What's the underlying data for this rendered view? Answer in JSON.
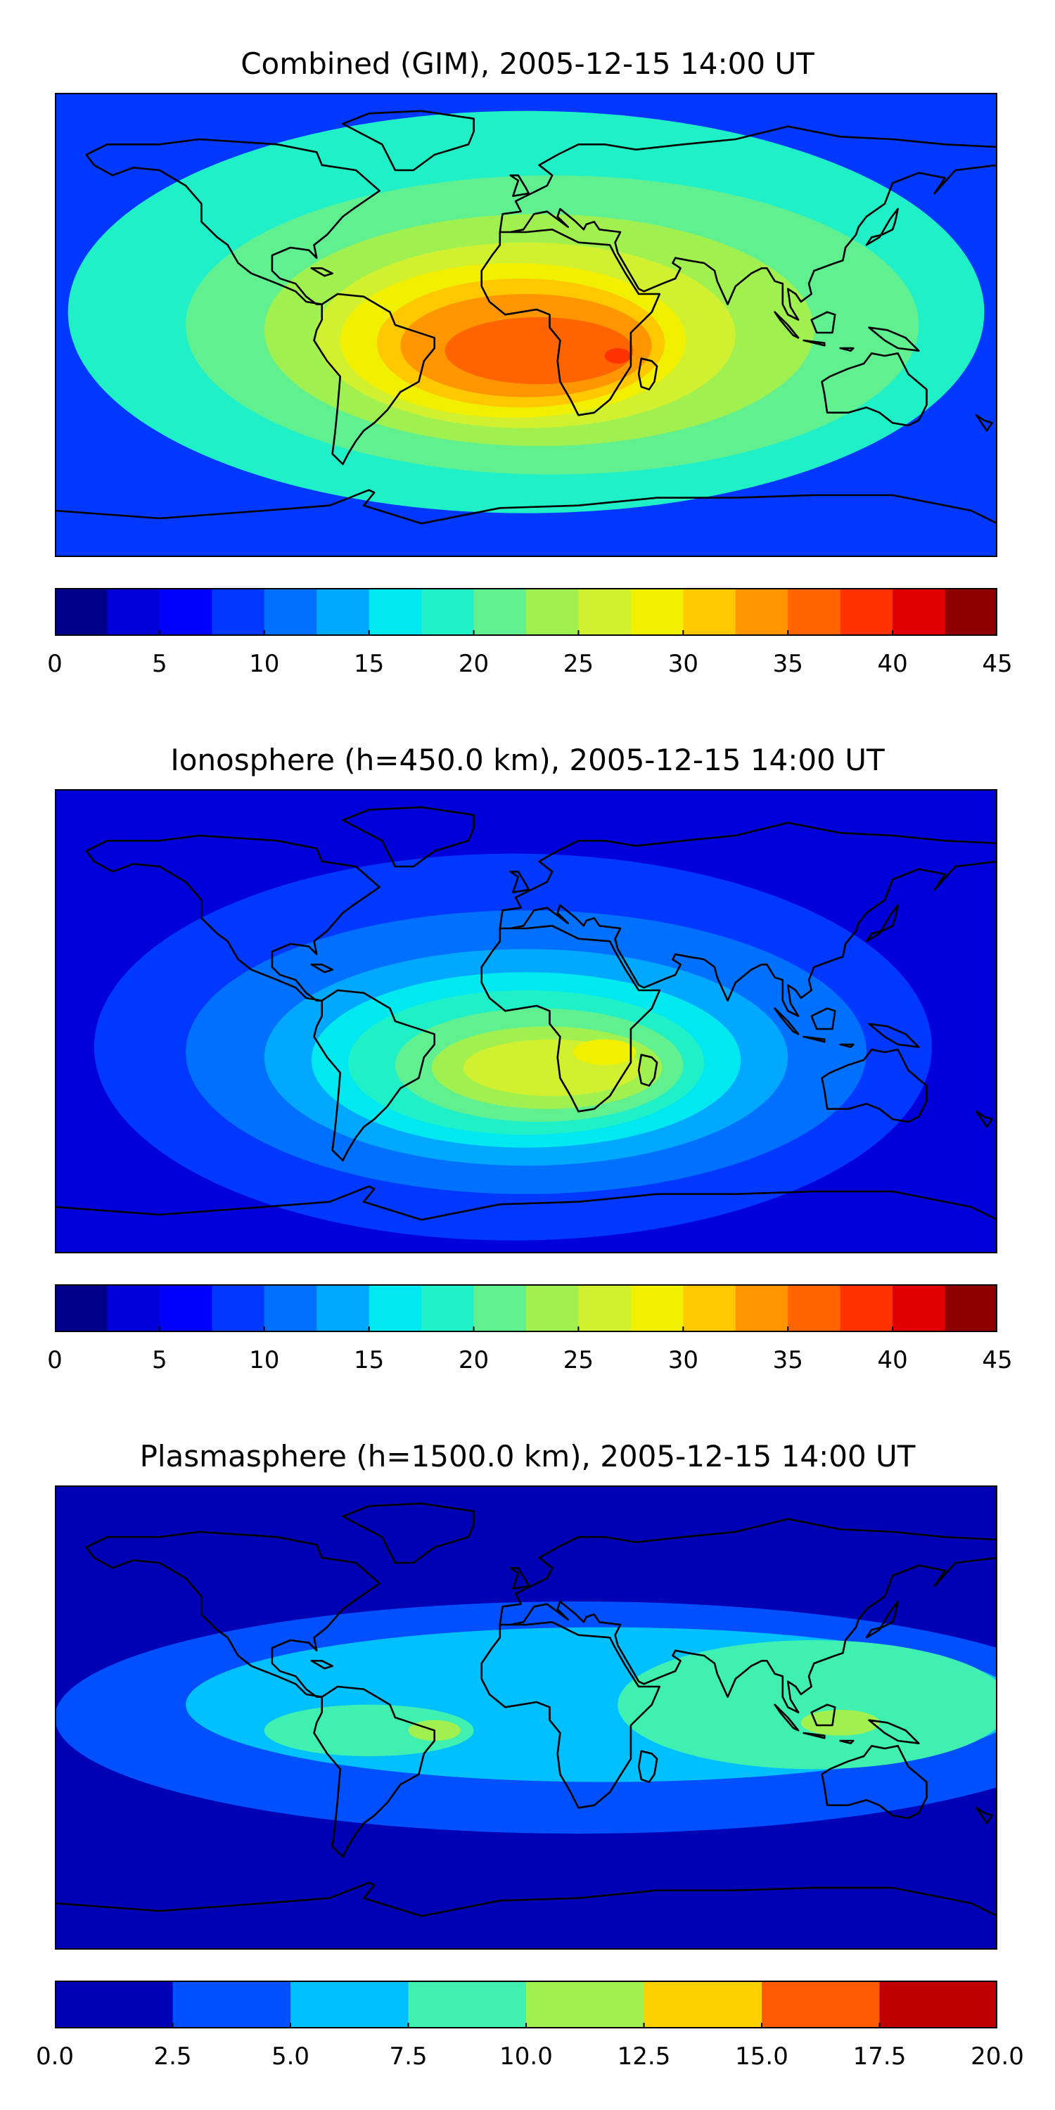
{
  "chart_data": [
    {
      "type": "heatmap",
      "title": "Combined (GIM), 2005-12-15 14:00 UT",
      "colorbar": {
        "ticks": [
          "0",
          "5",
          "10",
          "15",
          "20",
          "25",
          "30",
          "35",
          "40",
          "45"
        ],
        "tick_values": [
          0,
          5,
          10,
          15,
          20,
          25,
          30,
          35,
          40,
          45
        ],
        "range": [
          0,
          45
        ],
        "levels": 18,
        "colors": [
          "#00008b",
          "#0000d8",
          "#0000ff",
          "#0038ff",
          "#0070ff",
          "#00a8ff",
          "#00e8f0",
          "#20f0c8",
          "#60f090",
          "#a0f050",
          "#d0f030",
          "#f0f000",
          "#ffc800",
          "#ff9600",
          "#ff6400",
          "#ff3200",
          "#e00000",
          "#900000"
        ]
      },
      "background_level": 3,
      "regions": [
        {
          "lon": 0,
          "lat": 5,
          "rx": 175,
          "ry": 78,
          "level": 7
        },
        {
          "lon": 10,
          "lat": 0,
          "rx": 140,
          "ry": 58,
          "level": 8
        },
        {
          "lon": 5,
          "lat": -2,
          "rx": 105,
          "ry": 45,
          "level": 9
        },
        {
          "lon": 0,
          "lat": -4,
          "rx": 80,
          "ry": 36,
          "level": 10
        },
        {
          "lon": -5,
          "lat": -6,
          "rx": 66,
          "ry": 30,
          "level": 11
        },
        {
          "lon": -2,
          "lat": -7,
          "rx": 55,
          "ry": 25,
          "level": 12
        },
        {
          "lon": 0,
          "lat": -8,
          "rx": 48,
          "ry": 20,
          "level": 13
        },
        {
          "lon": 5,
          "lat": -10,
          "rx": 36,
          "ry": 13,
          "level": 14
        },
        {
          "lon": 35,
          "lat": -12,
          "rx": 5,
          "ry": 3,
          "level": 15
        }
      ]
    },
    {
      "type": "heatmap",
      "title": "Ionosphere  (h=450.0 km), 2005-12-15 14:00 UT",
      "colorbar": {
        "ticks": [
          "0",
          "5",
          "10",
          "15",
          "20",
          "25",
          "30",
          "35",
          "40",
          "45"
        ],
        "tick_values": [
          0,
          5,
          10,
          15,
          20,
          25,
          30,
          35,
          40,
          45
        ],
        "range": [
          0,
          45
        ],
        "levels": 18,
        "colors": [
          "#00008b",
          "#0000d8",
          "#0000ff",
          "#0038ff",
          "#0070ff",
          "#00a8ff",
          "#00e8f0",
          "#20f0c8",
          "#60f090",
          "#a0f050",
          "#d0f030",
          "#f0f000",
          "#ffc800",
          "#ff9600",
          "#ff6400",
          "#ff3200",
          "#e00000",
          "#900000"
        ]
      },
      "background_level": 1,
      "regions": [
        {
          "lon": -5,
          "lat": -10,
          "rx": 160,
          "ry": 75,
          "level": 3
        },
        {
          "lon": 0,
          "lat": -12,
          "rx": 130,
          "ry": 55,
          "level": 4
        },
        {
          "lon": 0,
          "lat": -14,
          "rx": 100,
          "ry": 42,
          "level": 5
        },
        {
          "lon": 0,
          "lat": -15,
          "rx": 82,
          "ry": 34,
          "level": 6
        },
        {
          "lon": 0,
          "lat": -16,
          "rx": 68,
          "ry": 28,
          "level": 7
        },
        {
          "lon": 5,
          "lat": -17,
          "rx": 55,
          "ry": 22,
          "level": 8
        },
        {
          "lon": 8,
          "lat": -18,
          "rx": 44,
          "ry": 16,
          "level": 9
        },
        {
          "lon": 10,
          "lat": -18,
          "rx": 34,
          "ry": 11,
          "level": 10
        },
        {
          "lon": 30,
          "lat": -12,
          "rx": 12,
          "ry": 5,
          "level": 11
        }
      ]
    },
    {
      "type": "heatmap",
      "title": "Plasmasphere (h=1500.0 km), 2005-12-15 14:00 UT",
      "colorbar": {
        "ticks": [
          "0.0",
          "2.5",
          "5.0",
          "7.5",
          "10.0",
          "12.5",
          "15.0",
          "17.5",
          "20.0"
        ],
        "tick_values": [
          0,
          2.5,
          5,
          7.5,
          10,
          12.5,
          15,
          17.5,
          20
        ],
        "range": [
          0,
          20
        ],
        "levels": 8,
        "colors": [
          "#0000b4",
          "#0050ff",
          "#00c0ff",
          "#40f0b0",
          "#a0f050",
          "#ffd000",
          "#ff5a00",
          "#c00000"
        ]
      },
      "background_level": 0,
      "regions": [
        {
          "lon": 20,
          "lat": 0,
          "rx": 200,
          "ry": 45,
          "level": 1
        },
        {
          "lon": 30,
          "lat": 5,
          "rx": 160,
          "ry": 30,
          "level": 2
        },
        {
          "lon": 110,
          "lat": 5,
          "rx": 75,
          "ry": 25,
          "level": 3
        },
        {
          "lon": -60,
          "lat": -5,
          "rx": 40,
          "ry": 10,
          "level": 3
        },
        {
          "lon": 120,
          "lat": -2,
          "rx": 15,
          "ry": 5,
          "level": 4
        },
        {
          "lon": -35,
          "lat": -5,
          "rx": 10,
          "ry": 4,
          "level": 4
        }
      ]
    }
  ]
}
